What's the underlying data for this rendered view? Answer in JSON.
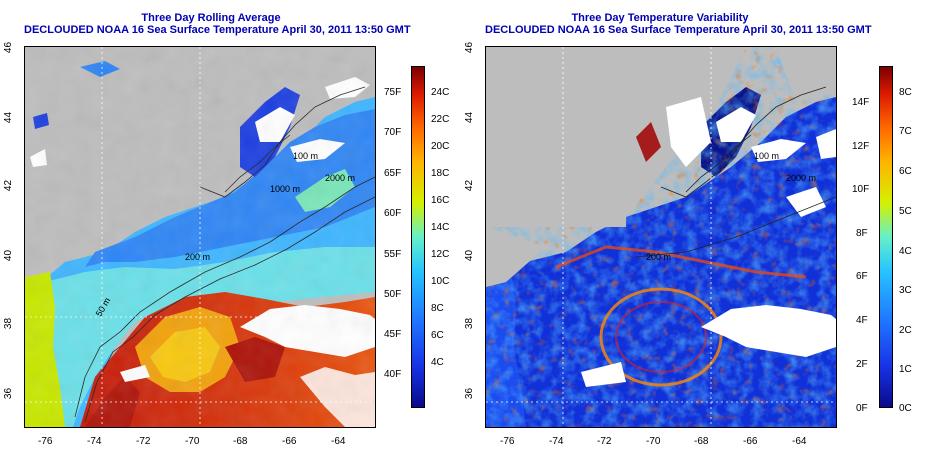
{
  "left_panel": {
    "title_line1": "Three Day Rolling Average",
    "title_line2": "DECLOUDED NOAA 16 Sea Surface Temperature April 30, 2011 13:50 GMT",
    "contour_labels": [
      "100 m",
      "1000 m",
      "2000 m",
      "200 m",
      "50 m"
    ],
    "colorbar_f": [
      "75F",
      "70F",
      "65F",
      "60F",
      "55F",
      "50F",
      "45F",
      "40F"
    ],
    "colorbar_c": [
      "24C",
      "22C",
      "20C",
      "18C",
      "16C",
      "14C",
      "12C",
      "10C",
      "8C",
      "6C",
      "4C"
    ]
  },
  "right_panel": {
    "title_line1": "Three Day Temperature Variability",
    "title_line2": "DECLOUDED NOAA 16 Sea Surface Temperature April 30, 2011 13:50 GMT",
    "contour_labels": [
      "100 m",
      "2000 m",
      "200 m"
    ],
    "colorbar_f": [
      "14F",
      "12F",
      "10F",
      "8F",
      "6F",
      "4F",
      "2F",
      "0F"
    ],
    "colorbar_c": [
      "8C",
      "7C",
      "6C",
      "5C",
      "4C",
      "3C",
      "2C",
      "1C",
      "0C"
    ]
  },
  "x_ticks": [
    "-76",
    "-74",
    "-72",
    "-70",
    "-68",
    "-66",
    "-64"
  ],
  "y_ticks": [
    "46",
    "44",
    "42",
    "40",
    "38",
    "36"
  ],
  "colors": {
    "title": "#0000b4",
    "land": "#bdbdbd",
    "cloud": "#ffffff"
  }
}
